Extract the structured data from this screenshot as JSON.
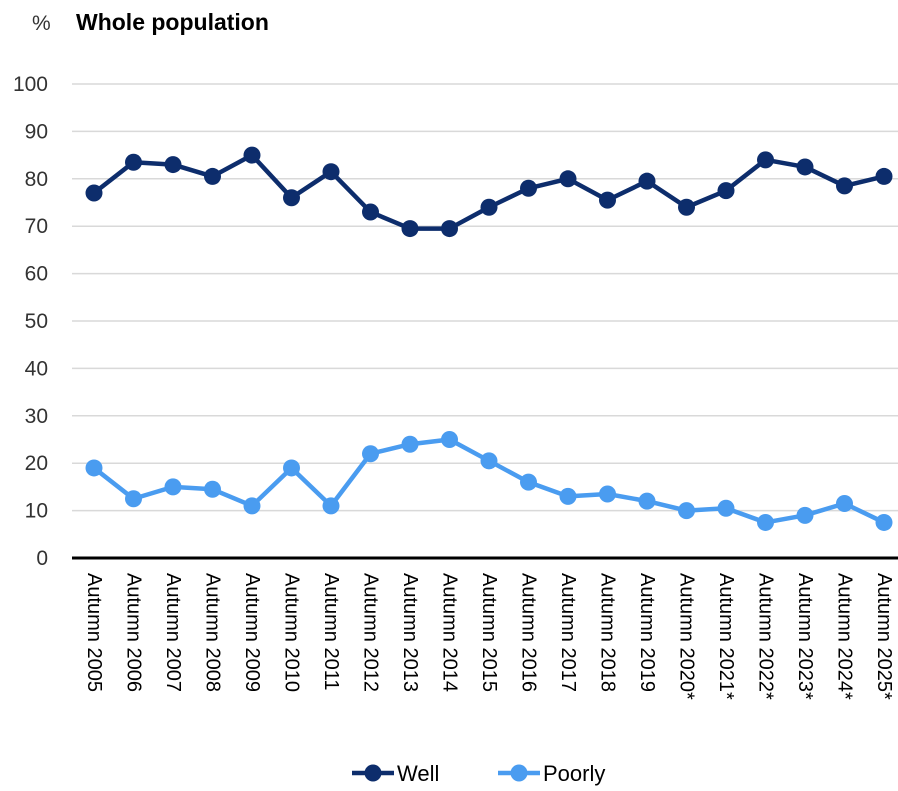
{
  "chart_data": {
    "type": "line",
    "title": "Whole population",
    "unit_label": "%",
    "categories": [
      "Autumn 2005",
      "Autumn 2006",
      "Autumn 2007",
      "Autumn 2008",
      "Autumn 2009",
      "Autumn 2010",
      "Autumn 2011",
      "Autumn 2012",
      "Autumn 2013",
      "Autumn 2014",
      "Autumn 2015",
      "Autumn 2016",
      "Autumn 2017",
      "Autumn 2018",
      "Autumn 2019",
      "Autumn 2020*",
      "Autumn 2021*",
      "Autumn 2022*",
      "Autumn 2023*",
      "Autumn 2024*",
      "Autumn 2025*"
    ],
    "series": [
      {
        "name": "Well",
        "color": "#0d2d6c",
        "values": [
          77,
          83.5,
          83,
          80.5,
          85,
          76,
          81.5,
          73,
          69.5,
          69.5,
          74,
          78,
          80,
          75.5,
          79.5,
          74,
          77.5,
          84,
          82.5,
          78.5,
          80.5
        ]
      },
      {
        "name": "Poorly",
        "color": "#4a9cf0",
        "values": [
          19,
          12.5,
          15,
          14.5,
          11,
          19,
          11,
          22,
          24,
          25,
          20.5,
          16,
          13,
          13.5,
          12,
          10,
          10.5,
          7.5,
          9,
          11.5,
          7.5
        ]
      }
    ],
    "yticks": [
      0,
      10,
      20,
      30,
      40,
      50,
      60,
      70,
      80,
      90,
      100
    ],
    "ylim": [
      0,
      100
    ],
    "grid": true,
    "legend_position": "bottom-center"
  }
}
